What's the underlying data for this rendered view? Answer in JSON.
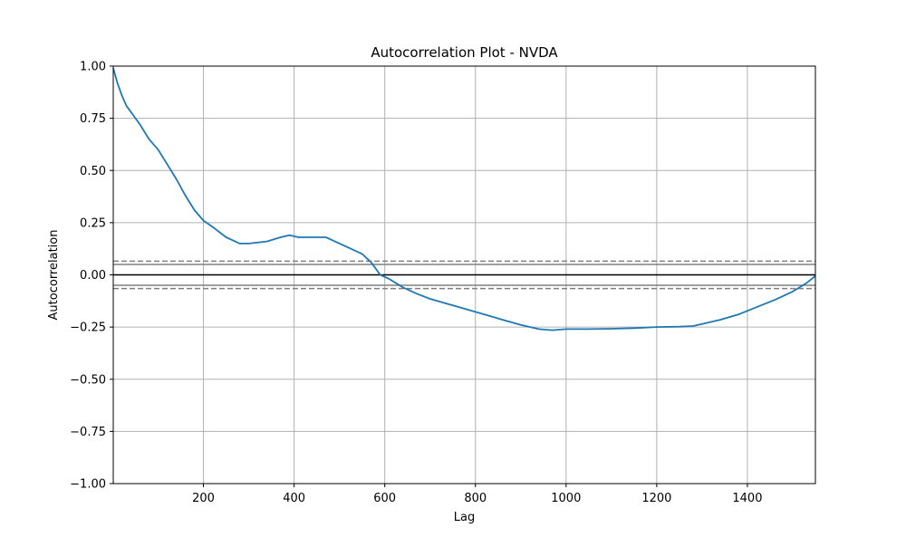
{
  "chart_data": {
    "type": "line",
    "title": "Autocorrelation Plot - NVDA",
    "xlabel": "Lag",
    "ylabel": "Autocorrelation",
    "xlim": [
      1,
      1550
    ],
    "ylim": [
      -1.0,
      1.0
    ],
    "grid": true,
    "x_ticks": [
      200,
      400,
      600,
      800,
      1000,
      1200,
      1400
    ],
    "x_tick_labels": [
      "200",
      "400",
      "600",
      "800",
      "1000",
      "1200",
      "1400"
    ],
    "y_ticks": [
      -1.0,
      -0.75,
      -0.5,
      -0.25,
      0.0,
      0.25,
      0.5,
      0.75,
      1.0
    ],
    "y_tick_labels": [
      "−1.00",
      "−0.75",
      "−0.50",
      "−0.25",
      "0.00",
      "0.25",
      "0.50",
      "0.75",
      "1.00"
    ],
    "reference_lines": {
      "zero": 0.0,
      "solid_bands": [
        0.0497,
        -0.0497
      ],
      "dashed_bands": [
        0.0654,
        -0.0654
      ]
    },
    "series": [
      {
        "color": "#1f77b4",
        "x": [
          1,
          10,
          20,
          30,
          40,
          60,
          80,
          100,
          120,
          140,
          160,
          180,
          200,
          220,
          250,
          280,
          300,
          340,
          370,
          390,
          410,
          440,
          470,
          490,
          510,
          530,
          550,
          570,
          590,
          610,
          640,
          670,
          700,
          740,
          780,
          820,
          860,
          900,
          940,
          970,
          1000,
          1050,
          1100,
          1150,
          1200,
          1250,
          1280,
          1300,
          1340,
          1380,
          1420,
          1460,
          1500,
          1530,
          1550
        ],
        "y": [
          0.99,
          0.92,
          0.86,
          0.81,
          0.78,
          0.72,
          0.65,
          0.6,
          0.53,
          0.46,
          0.38,
          0.31,
          0.26,
          0.23,
          0.18,
          0.15,
          0.15,
          0.16,
          0.18,
          0.19,
          0.18,
          0.18,
          0.18,
          0.16,
          0.14,
          0.12,
          0.1,
          0.06,
          0.0,
          -0.02,
          -0.06,
          -0.09,
          -0.115,
          -0.14,
          -0.165,
          -0.19,
          -0.215,
          -0.24,
          -0.26,
          -0.265,
          -0.26,
          -0.26,
          -0.258,
          -0.255,
          -0.25,
          -0.248,
          -0.245,
          -0.235,
          -0.215,
          -0.19,
          -0.155,
          -0.12,
          -0.08,
          -0.04,
          -0.005
        ]
      }
    ]
  }
}
